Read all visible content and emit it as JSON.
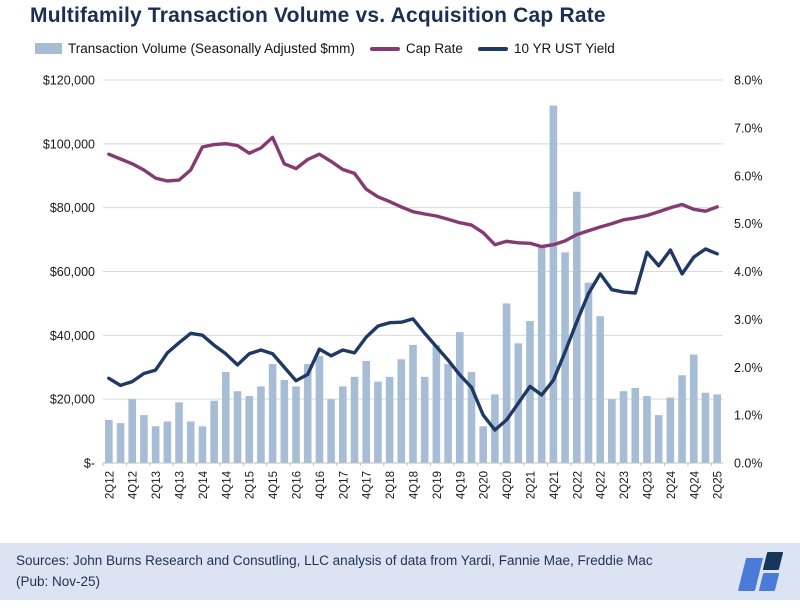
{
  "title": "Multifamily Transaction Volume vs. Acquisition Cap Rate",
  "legend": {
    "volume_label": "Transaction Volume (Seasonally Adjusted $mm)",
    "cap_rate_label": "Cap Rate",
    "ust_label": "10 YR UST Yield"
  },
  "colors": {
    "bar": "#a7bdd6",
    "cap_rate": "#843b72",
    "ust": "#1f3864",
    "title": "#1c2e52",
    "gridline": "#d9d9d9",
    "axis_line": "#bfbfbf",
    "tick_text": "#1a1a1a",
    "footer_bg": "#dce3f2",
    "logo_blue": "#4a7bd9",
    "logo_navy": "#16365c"
  },
  "chart_data": {
    "type": "bar+line combo",
    "title": "Multifamily Transaction Volume vs. Acquisition Cap Rate",
    "grid": "horizontal",
    "categories": [
      "2Q12",
      "3Q12",
      "4Q12",
      "1Q13",
      "2Q13",
      "3Q13",
      "4Q13",
      "1Q14",
      "2Q14",
      "3Q14",
      "4Q14",
      "1Q15",
      "2Q15",
      "3Q15",
      "4Q15",
      "1Q16",
      "2Q16",
      "3Q16",
      "4Q16",
      "1Q17",
      "2Q17",
      "3Q17",
      "4Q17",
      "1Q18",
      "2Q18",
      "3Q18",
      "4Q18",
      "1Q19",
      "2Q19",
      "3Q19",
      "4Q19",
      "1Q20",
      "2Q20",
      "3Q20",
      "4Q20",
      "1Q21",
      "2Q21",
      "3Q21",
      "4Q21",
      "1Q22",
      "2Q22",
      "3Q22",
      "4Q22",
      "1Q23",
      "2Q23",
      "3Q23",
      "4Q23",
      "1Q24",
      "2Q24",
      "3Q24",
      "4Q24",
      "1Q25",
      "2Q25"
    ],
    "x_labels_every": 2,
    "left_axis": {
      "min": 0,
      "max": 120000,
      "tick_labels": [
        "$120,000",
        "$100,000",
        "$80,000",
        "$60,000",
        "$40,000",
        "$20,000",
        "$-"
      ]
    },
    "right_axis": {
      "min": 0,
      "max": 8,
      "tick_labels": [
        "8.0%",
        "7.0%",
        "6.0%",
        "5.0%",
        "4.0%",
        "3.0%",
        "2.0%",
        "1.0%",
        "0.0%"
      ]
    },
    "series": [
      {
        "name": "Transaction Volume (Seasonally Adjusted $mm)",
        "type": "bar",
        "axis": "left",
        "values": [
          13500,
          12500,
          20000,
          15000,
          11500,
          13000,
          19000,
          13000,
          11500,
          19500,
          28500,
          22500,
          21000,
          24000,
          31000,
          26000,
          24000,
          31000,
          33500,
          20000,
          24000,
          27000,
          32000,
          25500,
          27000,
          32500,
          37000,
          27000,
          37000,
          31000,
          41000,
          28500,
          11500,
          21500,
          50000,
          37500,
          44500,
          68000,
          112000,
          66000,
          85000,
          56500,
          46000,
          20000,
          22500,
          23500,
          21000,
          15000,
          20500,
          27500,
          34000,
          22000,
          21500
        ]
      },
      {
        "name": "Cap Rate",
        "type": "line",
        "axis": "right",
        "values": [
          6.45,
          6.35,
          6.25,
          6.12,
          5.95,
          5.89,
          5.91,
          6.12,
          6.6,
          6.65,
          6.67,
          6.63,
          6.47,
          6.58,
          6.8,
          6.25,
          6.15,
          6.34,
          6.45,
          6.3,
          6.13,
          6.05,
          5.72,
          5.56,
          5.46,
          5.35,
          5.25,
          5.2,
          5.16,
          5.09,
          5.02,
          4.97,
          4.81,
          4.56,
          4.63,
          4.6,
          4.59,
          4.52,
          4.56,
          4.64,
          4.77,
          4.85,
          4.93,
          5.0,
          5.08,
          5.12,
          5.17,
          5.25,
          5.33,
          5.4,
          5.3,
          5.26,
          5.35
        ]
      },
      {
        "name": "10 YR UST Yield",
        "type": "line",
        "axis": "right",
        "values": [
          1.77,
          1.62,
          1.7,
          1.87,
          1.94,
          2.3,
          2.51,
          2.71,
          2.67,
          2.46,
          2.28,
          2.05,
          2.28,
          2.36,
          2.28,
          2.0,
          1.72,
          1.85,
          2.38,
          2.24,
          2.36,
          2.3,
          2.63,
          2.86,
          2.93,
          2.94,
          3.01,
          2.71,
          2.43,
          2.15,
          1.84,
          1.58,
          1.0,
          0.69,
          0.9,
          1.25,
          1.6,
          1.42,
          1.73,
          2.32,
          2.95,
          3.54,
          3.95,
          3.62,
          3.57,
          3.55,
          4.4,
          4.12,
          4.45,
          3.95,
          4.3,
          4.47,
          4.37
        ]
      }
    ]
  },
  "footer": {
    "line1": "Sources: John Burns Research and Consutling, LLC analysis of data from Yardi, Fannie Mae, Freddie Mac",
    "line2": "(Pub: Nov-25)"
  }
}
